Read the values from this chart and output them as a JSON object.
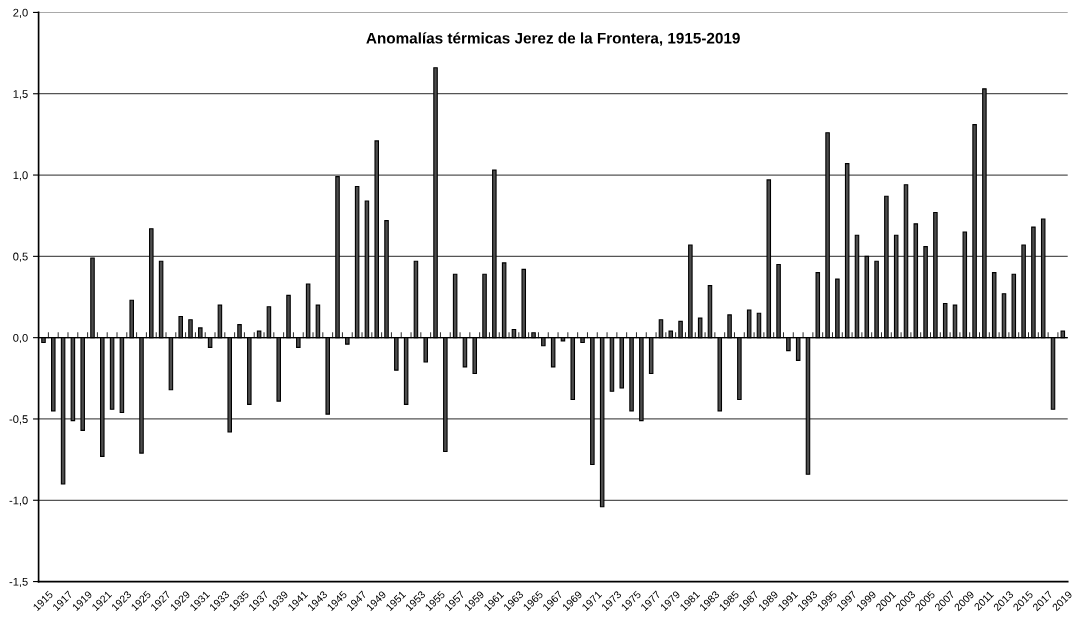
{
  "chart_data": {
    "type": "bar",
    "title": "Anomalías térmicas Jerez de la Frontera, 1915-2019",
    "categories": [
      "1915",
      null,
      "1917",
      null,
      "1919",
      null,
      "1921",
      null,
      "1923",
      null,
      "1925",
      null,
      "1927",
      null,
      "1929",
      null,
      "1931",
      null,
      "1933",
      null,
      "1935",
      null,
      "1937",
      null,
      "1939",
      null,
      "1941",
      null,
      "1943",
      null,
      "1945",
      null,
      "1947",
      null,
      "1949",
      null,
      "1951",
      null,
      "1953",
      null,
      "1955",
      null,
      "1957",
      null,
      "1959",
      null,
      "1961",
      null,
      "1963",
      null,
      "1965",
      null,
      "1967",
      null,
      "1969",
      null,
      "1971",
      null,
      "1973",
      null,
      "1975",
      null,
      "1977",
      null,
      "1979",
      null,
      "1981",
      null,
      "1983",
      null,
      "1985",
      null,
      "1987",
      null,
      "1989",
      null,
      "1991",
      null,
      "1993",
      null,
      "1995",
      null,
      "1997",
      null,
      "1999",
      null,
      "2001",
      null,
      "2003",
      null,
      "2005",
      null,
      "2007",
      null,
      "2009",
      null,
      "2011",
      null,
      "2013",
      null,
      "2015",
      null,
      "2017",
      null,
      "2019"
    ],
    "values": [
      -0.03,
      -0.45,
      -0.9,
      -0.51,
      -0.57,
      0.49,
      -0.73,
      -0.44,
      -0.46,
      0.23,
      -0.71,
      0.67,
      0.47,
      -0.32,
      0.13,
      0.11,
      0.06,
      -0.06,
      0.2,
      -0.58,
      0.08,
      -0.41,
      0.04,
      0.19,
      -0.39,
      0.26,
      -0.06,
      0.33,
      0.2,
      -0.47,
      0.99,
      -0.04,
      0.93,
      0.84,
      1.21,
      0.72,
      -0.2,
      -0.41,
      0.47,
      -0.15,
      1.66,
      -0.7,
      0.39,
      -0.18,
      -0.22,
      0.39,
      1.03,
      0.46,
      0.05,
      0.42,
      0.03,
      -0.05,
      -0.18,
      -0.02,
      -0.38,
      -0.03,
      -0.78,
      -1.04,
      -0.33,
      -0.31,
      -0.45,
      -0.51,
      -0.22,
      0.11,
      0.04,
      0.1,
      0.57,
      0.12,
      0.32,
      -0.45,
      0.14,
      -0.38,
      0.17,
      0.15,
      0.97,
      0.45,
      -0.08,
      -0.14,
      -0.84,
      0.4,
      1.26,
      0.36,
      1.07,
      0.63,
      0.5,
      0.47,
      0.87,
      0.63,
      0.94,
      0.7,
      0.56,
      0.77,
      0.21,
      0.2,
      0.65,
      1.31,
      1.53,
      0.4,
      0.27,
      0.39,
      0.57,
      0.68,
      0.73,
      -0.44,
      0.04
    ],
    "color": "#4d4d4d",
    "ylim": [
      -1.5,
      2.0
    ],
    "yticks": [
      {
        "value": -1.5,
        "label": "-1,5"
      },
      {
        "value": -1.0,
        "label": "-1,0"
      },
      {
        "value": -0.5,
        "label": "-0,5"
      },
      {
        "value": 0.0,
        "label": "0,0"
      },
      {
        "value": 0.5,
        "label": "0,5"
      },
      {
        "value": 1.0,
        "label": "1,0"
      },
      {
        "value": 1.5,
        "label": "1,5"
      },
      {
        "value": 2.0,
        "label": "2,0"
      }
    ],
    "ref_lines": [
      {
        "axis": "y",
        "value": 0,
        "color": "#000000"
      }
    ],
    "grid": "y"
  }
}
